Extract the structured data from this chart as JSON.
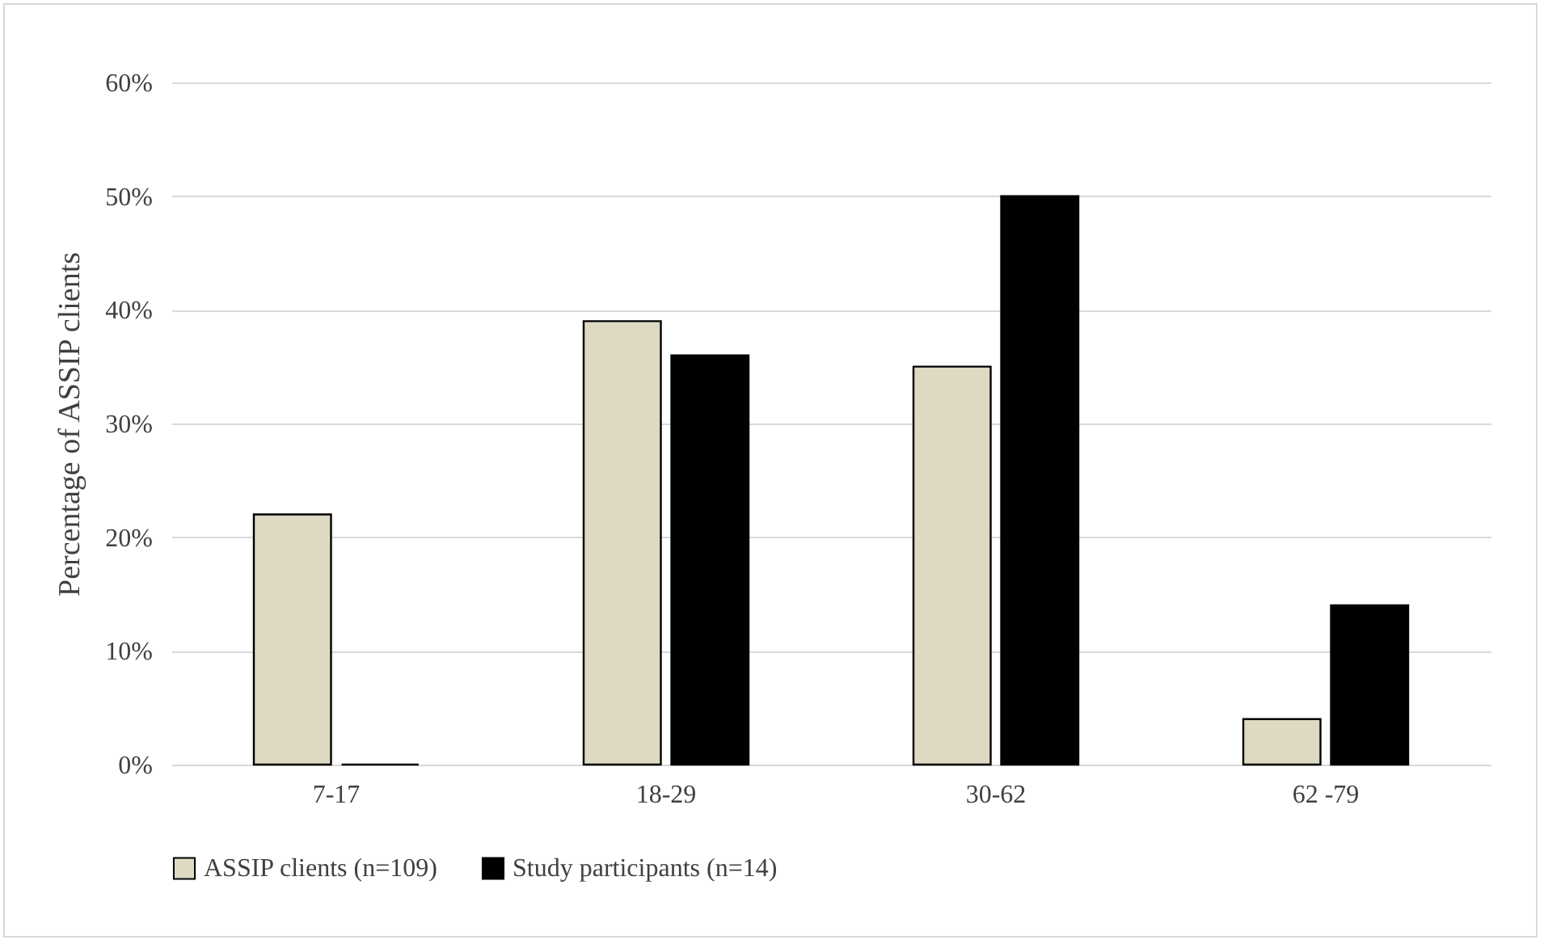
{
  "chart_data": {
    "type": "bar",
    "ylabel": "Percentage of ASSIP clients",
    "categories": [
      "7-17",
      "18-29",
      "30-62",
      "62 -79"
    ],
    "series": [
      {
        "name": "ASSIP clients (n=109)",
        "color": "#ddd9c3",
        "values": [
          22,
          39,
          35,
          4
        ]
      },
      {
        "name": "Study participants (n=14)",
        "color": "#000000",
        "values": [
          0,
          36,
          50,
          14
        ]
      }
    ],
    "ylim": [
      0,
      60
    ],
    "yticks": [
      {
        "value": 0,
        "label": "0%"
      },
      {
        "value": 10,
        "label": "10%"
      },
      {
        "value": 20,
        "label": "20%"
      },
      {
        "value": 30,
        "label": "30%"
      },
      {
        "value": 40,
        "label": "40%"
      },
      {
        "value": 50,
        "label": "50%"
      },
      {
        "value": 60,
        "label": "60%"
      }
    ],
    "grid": "y",
    "legend": "bottom"
  }
}
